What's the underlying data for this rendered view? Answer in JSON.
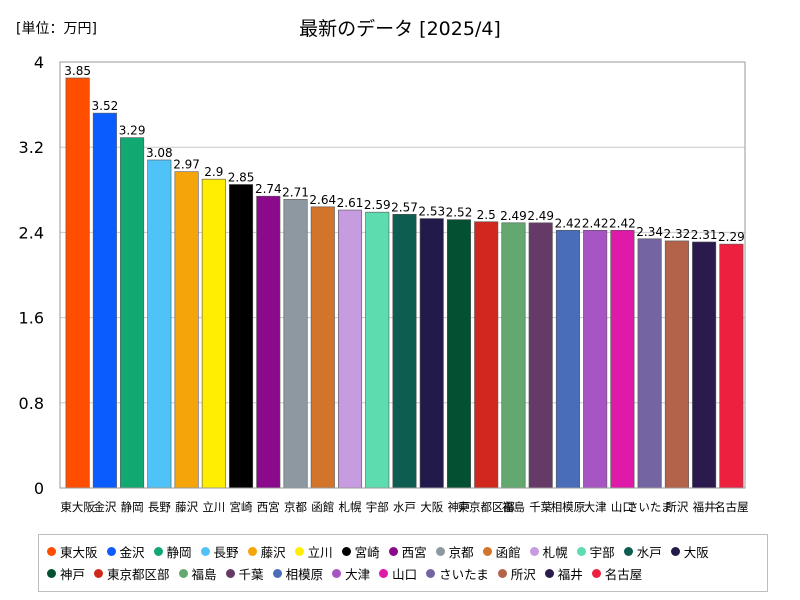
{
  "unit_label": "[単位：万円]",
  "chart_data": {
    "type": "bar",
    "title": "最新のデータ [2025/4]",
    "ylabel": "",
    "xlabel": "",
    "ylim": [
      0,
      4
    ],
    "yticks": [
      "0",
      "0.8",
      "1.6",
      "2.4",
      "3.2",
      "4"
    ],
    "ytick_values": [
      0,
      0.8,
      1.6,
      2.4,
      3.2,
      4
    ],
    "categories": [
      "東大阪",
      "金沢",
      "静岡",
      "長野",
      "藤沢",
      "立川",
      "宮崎",
      "西宮",
      "京都",
      "函館",
      "札幌",
      "宇部",
      "水戸",
      "大阪",
      "神戸",
      "東京都区部",
      "福島",
      "千葉",
      "相模原",
      "大津",
      "山口",
      "さいたま",
      "所沢",
      "福井",
      "名古屋"
    ],
    "values": [
      3.85,
      3.52,
      3.29,
      3.08,
      2.97,
      2.9,
      2.85,
      2.74,
      2.71,
      2.64,
      2.61,
      2.59,
      2.57,
      2.53,
      2.52,
      2.5,
      2.49,
      2.49,
      2.42,
      2.42,
      2.42,
      2.34,
      2.32,
      2.31,
      2.29
    ],
    "value_labels": [
      "3.85",
      "3.52",
      "3.29",
      "3.08",
      "2.97",
      "2.9",
      "2.85",
      "2.74",
      "2.71",
      "2.64",
      "2.61",
      "2.59",
      "2.57",
      "2.53",
      "2.52",
      "2.5",
      "2.49",
      "2.49",
      "2.42",
      "2.42",
      "2.42",
      "2.34",
      "2.32",
      "2.31",
      "2.29"
    ],
    "colors": [
      "#ff4e00",
      "#0a5cff",
      "#12a872",
      "#4fc3f7",
      "#f5a50a",
      "#ffee00",
      "#000000",
      "#8b0a8b",
      "#8e98a0",
      "#d2742a",
      "#c79be0",
      "#5ddcb0",
      "#0d5e50",
      "#221a4a",
      "#045033",
      "#d0281e",
      "#62a870",
      "#663a66",
      "#4a6db9",
      "#a855c4",
      "#e01aa8",
      "#7464a2",
      "#b3634a",
      "#2b1a4e",
      "#ee2040"
    ],
    "legend_position": "bottom"
  }
}
